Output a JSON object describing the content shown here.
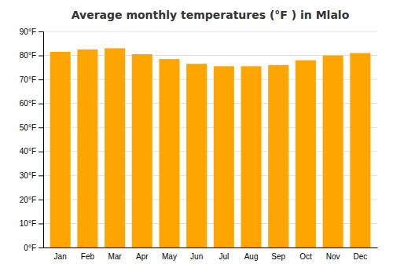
{
  "chart_data": {
    "type": "bar",
    "title": "Average monthly temperatures (°F ) in Mlalo",
    "categories": [
      "Jan",
      "Feb",
      "Mar",
      "Apr",
      "May",
      "Jun",
      "Jul",
      "Aug",
      "Sep",
      "Oct",
      "Nov",
      "Dec"
    ],
    "values": [
      81.5,
      82.5,
      83.0,
      80.5,
      78.5,
      76.5,
      75.5,
      75.5,
      76.0,
      78.0,
      80.0,
      81.0
    ],
    "color": "#FFA500",
    "ylim": [
      0,
      90
    ],
    "yticks": [
      {
        "value": 0,
        "label": "0°F"
      },
      {
        "value": 10,
        "label": "10°F"
      },
      {
        "value": 20,
        "label": "20°F"
      },
      {
        "value": 30,
        "label": "30°F"
      },
      {
        "value": 40,
        "label": "40°F"
      },
      {
        "value": 50,
        "label": "50°F"
      },
      {
        "value": 60,
        "label": "60°F"
      },
      {
        "value": 70,
        "label": "70°F"
      },
      {
        "value": 80,
        "label": "80°F"
      },
      {
        "value": 90,
        "label": "90°F"
      }
    ],
    "grid": true
  }
}
